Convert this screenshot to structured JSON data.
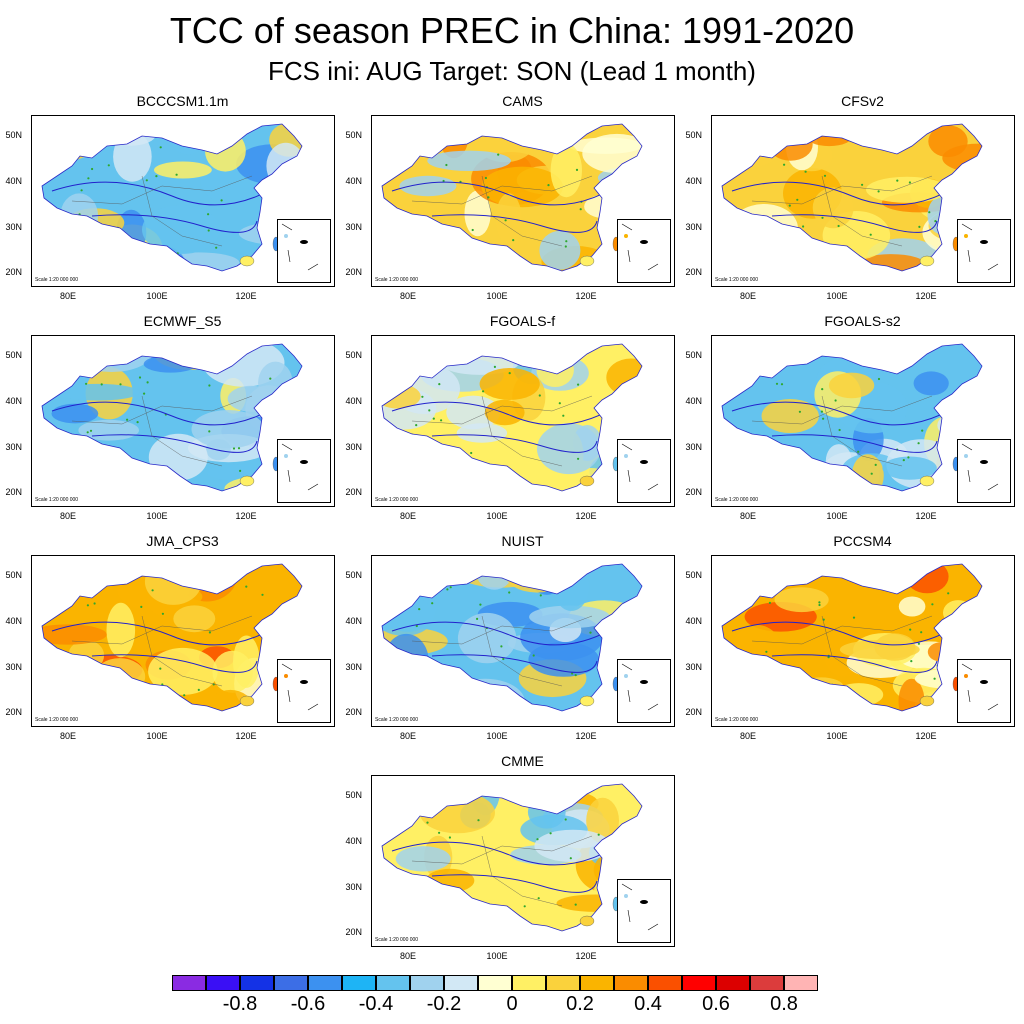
{
  "title": "TCC of season PREC in China: 1991-2020",
  "subtitle": "FCS ini: AUG    Target: SON (Lead 1 month)",
  "scale_text": "Scale 1:20 000 000",
  "lat_labels": [
    "50N",
    "40N",
    "30N",
    "20N"
  ],
  "lon_labels": [
    "80E",
    "100E",
    "120E"
  ],
  "panels": [
    {
      "name": "BCCCSM1.1m",
      "tone": "mixed-blue"
    },
    {
      "name": "CAMS",
      "tone": "positive"
    },
    {
      "name": "CFSv2",
      "tone": "positive"
    },
    {
      "name": "ECMWF_S5",
      "tone": "mixed-blue"
    },
    {
      "name": "FGOALS-f",
      "tone": "mixed"
    },
    {
      "name": "FGOALS-s2",
      "tone": "mixed-blue"
    },
    {
      "name": "JMA_CPS3",
      "tone": "strong-positive"
    },
    {
      "name": "NUIST",
      "tone": "mixed-blue"
    },
    {
      "name": "PCCSM4",
      "tone": "strong-positive"
    },
    {
      "name": "CMME",
      "tone": "mixed"
    }
  ],
  "colorbar": {
    "colors": [
      "#8a2be2",
      "#3a0ff5",
      "#1432e6",
      "#3c6ee6",
      "#3c91f0",
      "#1eb4f5",
      "#64c3ee",
      "#a0d2ee",
      "#d2e8f5",
      "#ffffd2",
      "#fff064",
      "#fad23c",
      "#fab400",
      "#fa8c00",
      "#fa5000",
      "#ff0000",
      "#dc0000",
      "#dc3c3c",
      "#ffb4b4"
    ],
    "labels": [
      "-0.8",
      "-0.6",
      "-0.4",
      "-0.2",
      "0",
      "0.2",
      "0.4",
      "0.6",
      "0.8"
    ]
  }
}
